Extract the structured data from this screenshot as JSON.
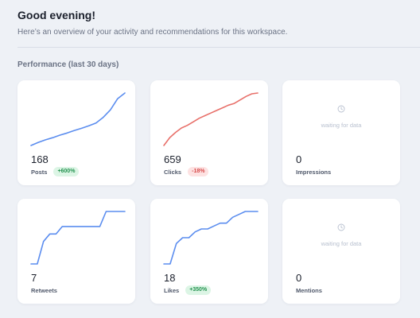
{
  "header": {
    "greeting": "Good evening!",
    "subtitle": "Here’s an overview of your activity and recommendations for this workspace."
  },
  "section": {
    "title": "Performance (last 30 days)"
  },
  "colors": {
    "blue": "#5b8def",
    "red": "#e8706a",
    "muted": "#b8c0cf"
  },
  "cards": [
    {
      "label": "Posts",
      "value": "168",
      "badge": "+600%",
      "trend": "up",
      "series": [
        0,
        10,
        18,
        25,
        33,
        40,
        48,
        55,
        63,
        72,
        90,
        114,
        150,
        168
      ]
    },
    {
      "label": "Clicks",
      "value": "659",
      "badge": "-18%",
      "trend": "down",
      "series": [
        60,
        150,
        210,
        260,
        290,
        330,
        370,
        400,
        430,
        460,
        490,
        520,
        540,
        580,
        620,
        650,
        659
      ]
    },
    {
      "label": "Impressions",
      "value": "0",
      "waiting": "waiting for data"
    },
    {
      "label": "Retweets",
      "value": "7",
      "series": [
        0,
        0,
        3,
        4,
        4,
        5,
        5,
        5,
        5,
        5,
        5,
        5,
        7,
        7,
        7,
        7
      ]
    },
    {
      "label": "Likes",
      "value": "18",
      "badge": "+350%",
      "trend": "up",
      "series": [
        0,
        0,
        7,
        9,
        9,
        11,
        12,
        12,
        13,
        14,
        14,
        16,
        17,
        18,
        18,
        18
      ]
    },
    {
      "label": "Mentions",
      "value": "0",
      "waiting": "waiting for data"
    }
  ]
}
